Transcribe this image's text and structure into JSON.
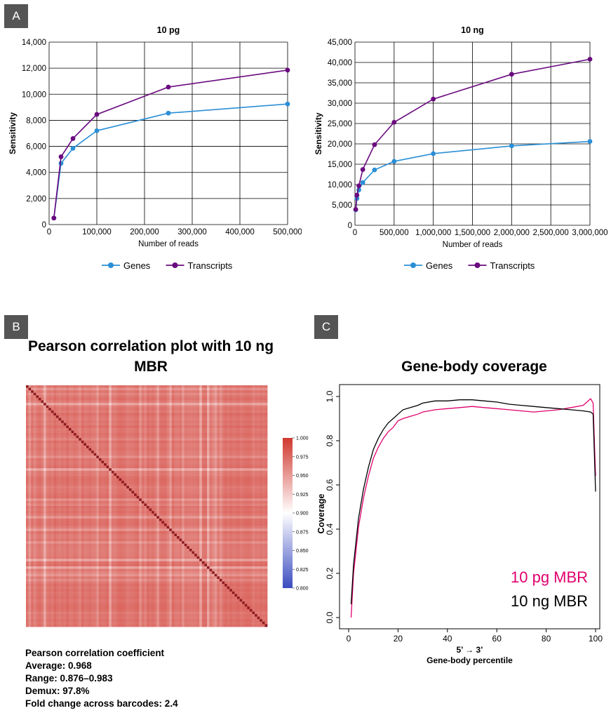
{
  "panels": {
    "a": "A",
    "b": "B",
    "c": "C"
  },
  "colors": {
    "genes": "#2b8fd6",
    "transcripts": "#6a0a7f",
    "pg_mbr": "#e0006e",
    "ng_mbr": "#000000"
  },
  "chart_data": [
    {
      "id": "sensitivity_10pg",
      "type": "line",
      "title": "10 pg",
      "xlabel": "Number of reads",
      "ylabel": "Sensitivity",
      "xlim": [
        0,
        500000
      ],
      "ylim": [
        0,
        14000
      ],
      "xticks": [
        0,
        100000,
        200000,
        300000,
        400000,
        500000
      ],
      "xtick_labels": [
        "0",
        "100,000",
        "200,000",
        "300,000",
        "400,000",
        "500,000"
      ],
      "yticks": [
        0,
        2000,
        4000,
        6000,
        8000,
        10000,
        12000,
        14000
      ],
      "ytick_labels": [
        "0",
        "2,000",
        "4,000",
        "6,000",
        "8,000",
        "10,000",
        "12,000",
        "14,000"
      ],
      "grid": true,
      "legend": "bottom",
      "series": [
        {
          "name": "Genes",
          "color": "#2b8fd6",
          "x": [
            10000,
            25000,
            50000,
            100000,
            250000,
            500000
          ],
          "y": [
            500,
            4700,
            5850,
            7200,
            8550,
            9250
          ]
        },
        {
          "name": "Transcripts",
          "color": "#6a0a7f",
          "x": [
            10000,
            25000,
            50000,
            100000,
            250000,
            500000
          ],
          "y": [
            500,
            5200,
            6600,
            8450,
            10550,
            11850
          ]
        }
      ]
    },
    {
      "id": "sensitivity_10ng",
      "type": "line",
      "title": "10 ng",
      "xlabel": "Number of reads",
      "ylabel": "Sensitivity",
      "xlim": [
        0,
        3000000
      ],
      "ylim": [
        0,
        45000
      ],
      "xticks": [
        0,
        500000,
        1000000,
        1500000,
        2000000,
        2500000,
        3000000
      ],
      "xtick_labels": [
        "0",
        "500,000",
        "1,000,000",
        "1,500,000",
        "2,000,000",
        "2,500,000",
        "3,000,000"
      ],
      "yticks": [
        0,
        5000,
        10000,
        15000,
        20000,
        25000,
        30000,
        35000,
        40000,
        45000
      ],
      "ytick_labels": [
        "0",
        "5,000",
        "10,000",
        "15,000",
        "20,000",
        "25,000",
        "30,000",
        "35,000",
        "40,000",
        "45,000"
      ],
      "grid": true,
      "legend": "bottom",
      "series": [
        {
          "name": "Genes",
          "color": "#2b8fd6",
          "x": [
            10000,
            25000,
            50000,
            100000,
            250000,
            500000,
            1000000,
            2000000,
            3000000
          ],
          "y": [
            3800,
            6600,
            8700,
            10500,
            13600,
            15700,
            17600,
            19500,
            20600
          ]
        },
        {
          "name": "Transcripts",
          "color": "#6a0a7f",
          "x": [
            10000,
            25000,
            50000,
            100000,
            250000,
            500000,
            1000000,
            2000000,
            3000000
          ],
          "y": [
            3900,
            7400,
            9700,
            13700,
            19800,
            25300,
            31000,
            37100,
            40800
          ]
        }
      ]
    },
    {
      "id": "pearson_heatmap",
      "type": "heatmap",
      "title": "Pearson correlation plot with 10 ng MBR",
      "colorbar": {
        "min": 0.8,
        "max": 1.0,
        "ticks": [
          1.0,
          0.975,
          0.95,
          0.925,
          0.9,
          0.875,
          0.85,
          0.825,
          0.8
        ],
        "tick_labels": [
          "1.000",
          "0.975",
          "0.950",
          "0.925",
          "0.900",
          "0.875",
          "0.850",
          "0.825",
          "0.800"
        ],
        "colors": [
          "#3b4cc0",
          "#ffffff",
          "#d0382f"
        ]
      },
      "n_samples": 96,
      "summary": {
        "heading": "Pearson correlation coefficient",
        "average": "Average: 0.968",
        "range": "Range: 0.876–0.983",
        "demux": "Demux: 97.8%",
        "fold_change": "Fold change across barcodes: 2.4"
      }
    },
    {
      "id": "gene_body_coverage",
      "type": "line",
      "title": "Gene-body coverage",
      "xlabel": "Gene-body percentile",
      "xlabel_top": "5’ → 3’",
      "ylabel": "Coverage",
      "xlim": [
        0,
        100
      ],
      "ylim": [
        0,
        1.0
      ],
      "xticks": [
        0,
        20,
        40,
        60,
        80,
        100
      ],
      "yticks": [
        0.0,
        0.2,
        0.4,
        0.6,
        0.8,
        1.0
      ],
      "ytick_labels": [
        "0.0",
        "0.2",
        "0.4",
        "0.6",
        "0.8",
        "1.0"
      ],
      "grid": false,
      "legend": "bottom-right",
      "series": [
        {
          "name": "10 pg MBR",
          "color": "#e0006e",
          "x": [
            1,
            2,
            4,
            6,
            8,
            10,
            12,
            14,
            16,
            18,
            20,
            22,
            25,
            28,
            30,
            35,
            40,
            45,
            50,
            55,
            60,
            65,
            70,
            75,
            80,
            85,
            90,
            95,
            98,
            99,
            100
          ],
          "y": [
            0.0,
            0.2,
            0.41,
            0.54,
            0.64,
            0.72,
            0.77,
            0.81,
            0.84,
            0.86,
            0.89,
            0.9,
            0.91,
            0.92,
            0.93,
            0.94,
            0.945,
            0.95,
            0.955,
            0.95,
            0.945,
            0.94,
            0.935,
            0.93,
            0.935,
            0.94,
            0.95,
            0.96,
            0.99,
            0.97,
            0.64
          ]
        },
        {
          "name": "10 ng MBR",
          "color": "#000000",
          "x": [
            1,
            2,
            4,
            6,
            8,
            10,
            12,
            14,
            16,
            18,
            20,
            22,
            25,
            28,
            30,
            35,
            40,
            45,
            50,
            55,
            60,
            65,
            70,
            75,
            80,
            85,
            90,
            95,
            98,
            99,
            100
          ],
          "y": [
            0.06,
            0.24,
            0.45,
            0.58,
            0.68,
            0.76,
            0.81,
            0.85,
            0.88,
            0.9,
            0.92,
            0.94,
            0.95,
            0.96,
            0.97,
            0.98,
            0.98,
            0.985,
            0.985,
            0.98,
            0.975,
            0.965,
            0.96,
            0.955,
            0.95,
            0.945,
            0.94,
            0.935,
            0.93,
            0.92,
            0.57
          ]
        }
      ]
    }
  ]
}
